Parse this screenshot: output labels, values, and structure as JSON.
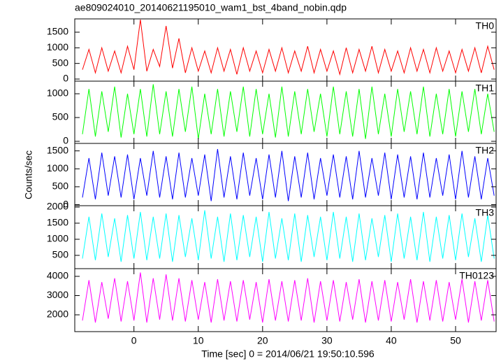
{
  "chart_data": {
    "type": "line",
    "title": "ae809024010_20140621195010_wam1_bst_4band_nobin.qdp",
    "xlabel": "Time [sec] 0 = 2014/06/21 19:50:10.596",
    "ylabel": "Counts/sec",
    "xlim": [
      -9.2,
      56.3
    ],
    "xticks": [
      0,
      10,
      20,
      30,
      40,
      50
    ],
    "x": [
      -8,
      -7,
      -6,
      -5,
      -4,
      -3,
      -2,
      -1,
      0,
      1,
      2,
      3,
      4,
      5,
      6,
      7,
      8,
      9,
      10,
      11,
      12,
      13,
      14,
      15,
      16,
      17,
      18,
      19,
      20,
      21,
      22,
      23,
      24,
      25,
      26,
      27,
      28,
      29,
      30,
      31,
      32,
      33,
      34,
      35,
      36,
      37,
      38,
      39,
      40,
      41,
      42,
      43,
      44,
      45,
      46,
      47,
      48,
      49,
      50,
      51,
      52,
      53,
      54,
      55,
      56
    ],
    "series": [
      {
        "name": "TH0",
        "color": "#ff0000",
        "ylim": [
          -67,
          1925
        ],
        "yticks": [
          0,
          500,
          1000,
          1500
        ],
        "values": [
          300,
          950,
          200,
          1000,
          250,
          900,
          200,
          1050,
          300,
          1900,
          250,
          950,
          400,
          1700,
          350,
          1300,
          200,
          1000,
          250,
          900,
          200,
          1000,
          250,
          950,
          150,
          1000,
          250,
          900,
          200,
          950,
          250,
          1000,
          200,
          900,
          250,
          1050,
          200,
          950,
          250,
          900,
          150,
          1000,
          200,
          950,
          250,
          1050,
          200,
          950,
          250,
          900,
          200,
          1000,
          250,
          950,
          200,
          1000,
          250,
          900,
          200,
          950,
          250,
          1000,
          200,
          1050,
          300
        ]
      },
      {
        "name": "TH1",
        "color": "#00ff00",
        "ylim": [
          -44,
          1265
        ],
        "yticks": [
          0,
          500,
          1000
        ],
        "values": [
          150,
          1100,
          100,
          1050,
          200,
          1150,
          80,
          1000,
          150,
          1100,
          100,
          1200,
          150,
          1050,
          100,
          1100,
          200,
          1150,
          50,
          1000,
          150,
          1100,
          100,
          1050,
          200,
          1150,
          100,
          1100,
          150,
          1000,
          80,
          1150,
          100,
          1050,
          150,
          1100,
          200,
          1000,
          100,
          1150,
          150,
          1050,
          100,
          1100,
          50,
          1150,
          150,
          1000,
          100,
          1100,
          200,
          1050,
          150,
          1150,
          100,
          1000,
          150,
          1100,
          100,
          1050,
          200,
          1100,
          150,
          1000,
          200
        ]
      },
      {
        "name": "TH2",
        "color": "#0000ff",
        "ylim": [
          -28,
          1708
        ],
        "yticks": [
          0,
          500,
          1000,
          1500
        ],
        "values": [
          200,
          1300,
          150,
          1450,
          250,
          1350,
          200,
          1400,
          150,
          1300,
          250,
          1500,
          200,
          1350,
          150,
          1450,
          200,
          1300,
          250,
          1400,
          100,
          1550,
          200,
          1350,
          150,
          1450,
          250,
          1300,
          150,
          1400,
          200,
          1500,
          100,
          1350,
          200,
          1450,
          150,
          1300,
          250,
          1400,
          200,
          1350,
          150,
          1500,
          200,
          1300,
          250,
          1450,
          150,
          1400,
          200,
          1350,
          150,
          1450,
          200,
          1300,
          250,
          1400,
          150,
          1500,
          200,
          1350,
          150,
          1300,
          250
        ]
      },
      {
        "name": "TH3",
        "color": "#00ffff",
        "ylim": [
          87,
          2043
        ],
        "yticks": [
          500,
          1000,
          1500,
          2000
        ],
        "values": [
          400,
          1700,
          350,
          1800,
          450,
          1650,
          300,
          1750,
          400,
          1850,
          350,
          1700,
          400,
          1800,
          300,
          1750,
          450,
          1650,
          350,
          1900,
          400,
          1700,
          300,
          1800,
          350,
          1750,
          450,
          1700,
          300,
          1850,
          400,
          1650,
          350,
          1800,
          300,
          1750,
          450,
          1700,
          350,
          1850,
          400,
          1700,
          300,
          1800,
          350,
          1650,
          450,
          1750,
          300,
          1800,
          400,
          1700,
          350,
          1850,
          300,
          1700,
          400,
          1750,
          350,
          1800,
          450,
          1650,
          300,
          1750,
          400
        ]
      },
      {
        "name": "TH0123",
        "color": "#ff00ff",
        "ylim": [
          1127,
          4400
        ],
        "yticks": [
          2000,
          3000,
          4000
        ],
        "values": [
          1700,
          3800,
          1600,
          3700,
          1800,
          3900,
          1650,
          3750,
          1700,
          4200,
          1600,
          3900,
          1750,
          4100,
          1700,
          3900,
          1650,
          3800,
          1750,
          3700,
          1600,
          3850,
          1700,
          3750,
          1650,
          3800,
          1750,
          3700,
          1600,
          3850,
          1700,
          3750,
          1650,
          3800,
          1700,
          3900,
          1600,
          3750,
          1700,
          3800,
          1650,
          3700,
          1750,
          3850,
          1600,
          3750,
          1700,
          3800,
          1650,
          3700,
          1750,
          3850,
          1600,
          3750,
          1700,
          3800,
          1650,
          3700,
          1750,
          3850,
          1600,
          3750,
          1700,
          3800,
          1650
        ]
      }
    ]
  }
}
